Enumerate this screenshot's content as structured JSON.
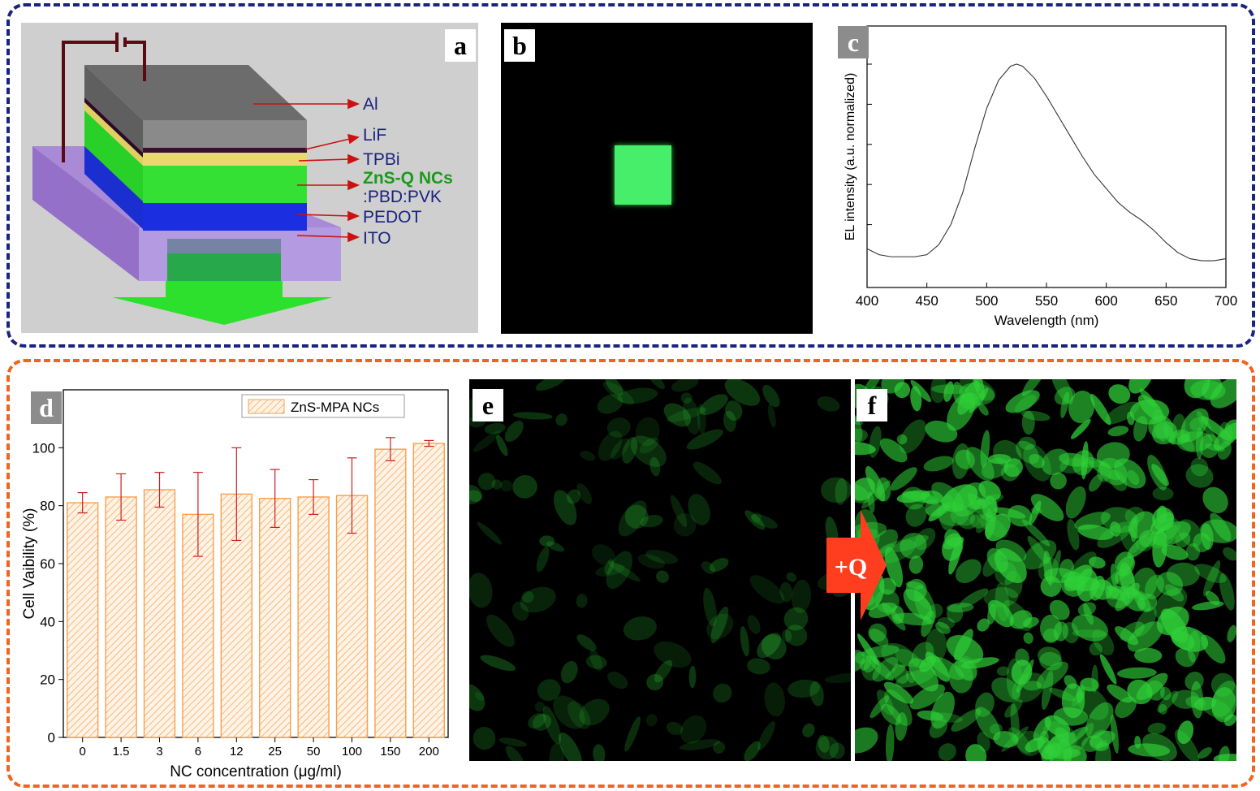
{
  "panel_labels": {
    "a": "a",
    "b": "b",
    "c": "c",
    "d": "d",
    "e": "e",
    "f": "f"
  },
  "colors": {
    "top_frame": "#1a237e",
    "bottom_frame": "#f0641e",
    "bar_fill": "#f5a04f",
    "error_bar": "#cc1f1f",
    "arrow": "#ff3d1f"
  },
  "diagram": {
    "layers": [
      {
        "label": "Al",
        "color": "#1a237e"
      },
      {
        "label": "LiF",
        "color": "#1a237e"
      },
      {
        "label": "TPBi",
        "color": "#1a237e"
      },
      {
        "label": "ZnS-Q NCs",
        "color": "#1a9a1a"
      },
      {
        "label": ":PBD:PVK",
        "color": "#1a237e"
      },
      {
        "label": "PEDOT",
        "color": "#1a237e"
      },
      {
        "label": "ITO",
        "color": "#1a237e"
      }
    ]
  },
  "arrow_label": "+Q",
  "chart_data": [
    {
      "type": "line",
      "panel": "c",
      "xlabel": "Wavelength (nm)",
      "ylabel": "EL intensity (a.u. normalized)",
      "xlim": [
        400,
        700
      ],
      "ylim": [
        0,
        1
      ],
      "xticks": [
        400,
        450,
        500,
        550,
        600,
        650,
        700
      ],
      "series": [
        {
          "x": [
            400,
            410,
            420,
            430,
            440,
            450,
            460,
            470,
            480,
            490,
            500,
            510,
            520,
            525,
            530,
            540,
            550,
            560,
            570,
            580,
            590,
            600,
            610,
            620,
            630,
            640,
            650,
            660,
            670,
            680,
            690,
            700
          ],
          "y": [
            0.08,
            0.05,
            0.04,
            0.04,
            0.04,
            0.05,
            0.1,
            0.2,
            0.36,
            0.58,
            0.78,
            0.92,
            0.99,
            1.0,
            0.99,
            0.93,
            0.84,
            0.74,
            0.64,
            0.54,
            0.45,
            0.38,
            0.31,
            0.26,
            0.22,
            0.17,
            0.11,
            0.06,
            0.03,
            0.02,
            0.02,
            0.03
          ]
        }
      ]
    },
    {
      "type": "bar",
      "panel": "d",
      "xlabel": "NC concentration (μg/ml)",
      "ylabel": "Cell Vaibility (%)",
      "ylim": [
        0,
        120
      ],
      "yticks": [
        0,
        20,
        40,
        60,
        80,
        100
      ],
      "legend": "top-right",
      "categories": [
        "0",
        "1.5",
        "3",
        "6",
        "12",
        "25",
        "50",
        "100",
        "150",
        "200"
      ],
      "series": [
        {
          "name": "ZnS-MPA NCs",
          "values": [
            81,
            83,
            85.5,
            77,
            84,
            82.5,
            83,
            83.5,
            99.5,
            101.5
          ],
          "errors": [
            3.5,
            8,
            6,
            14.5,
            16,
            10,
            6,
            13,
            4,
            1
          ]
        }
      ]
    }
  ]
}
